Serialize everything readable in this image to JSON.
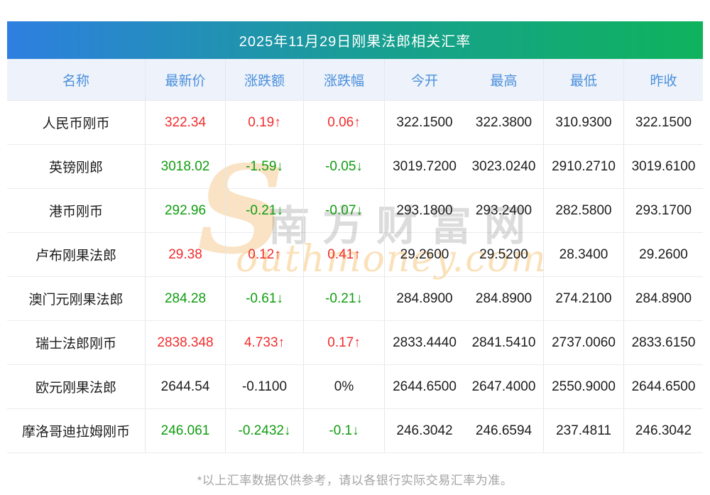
{
  "title": "2025年11月29日刚果法郎相关汇率",
  "table": {
    "columns": [
      "名称",
      "最新价",
      "涨跌额",
      "涨跌幅",
      "今开",
      "最高",
      "最低",
      "昨收"
    ],
    "column_keys": [
      "name",
      "last",
      "change",
      "pct",
      "open",
      "high",
      "low",
      "prev"
    ],
    "rows": [
      {
        "name": "人民币刚币",
        "last": "322.34",
        "change": "0.19↑",
        "pct": "0.06↑",
        "trend": "up",
        "open": "322.1500",
        "high": "322.3800",
        "low": "310.9300",
        "prev": "322.1500"
      },
      {
        "name": "英镑刚郎",
        "last": "3018.02",
        "change": "-1.59↓",
        "pct": "-0.05↓",
        "trend": "down",
        "open": "3019.7200",
        "high": "3023.0240",
        "low": "2910.2710",
        "prev": "3019.6100"
      },
      {
        "name": "港币刚币",
        "last": "292.96",
        "change": "-0.21↓",
        "pct": "-0.07↓",
        "trend": "down",
        "open": "293.1800",
        "high": "293.2400",
        "low": "282.5800",
        "prev": "293.1700"
      },
      {
        "name": "卢布刚果法郎",
        "last": "29.38",
        "change": "0.12↑",
        "pct": "0.41↑",
        "trend": "up",
        "open": "29.2600",
        "high": "29.5200",
        "low": "28.3400",
        "prev": "29.2600"
      },
      {
        "name": "澳门元刚果法郎",
        "last": "284.28",
        "change": "-0.61↓",
        "pct": "-0.21↓",
        "trend": "down",
        "open": "284.8900",
        "high": "284.8900",
        "low": "274.2100",
        "prev": "284.8900"
      },
      {
        "name": "瑞士法郎刚币",
        "last": "2838.348",
        "change": "4.733↑",
        "pct": "0.17↑",
        "trend": "up",
        "open": "2833.4440",
        "high": "2841.5410",
        "low": "2737.0060",
        "prev": "2833.6150"
      },
      {
        "name": "欧元刚果法郎",
        "last": "2644.54",
        "change": "-0.1100",
        "pct": "0%",
        "trend": "flat",
        "open": "2644.6500",
        "high": "2647.4000",
        "low": "2550.9000",
        "prev": "2644.6500"
      },
      {
        "name": "摩洛哥迪拉姆刚币",
        "last": "246.061",
        "change": "-0.2432↓",
        "pct": "-0.1↓",
        "trend": "down",
        "open": "246.3042",
        "high": "246.6594",
        "low": "237.4811",
        "prev": "246.3042"
      }
    ]
  },
  "watermark": {
    "initial": "S",
    "cn": "南方财富网",
    "en": "outhmoney.com"
  },
  "footer": "*以上汇率数据仅供参考，请以各银行实际交易汇率为准。",
  "colors": {
    "up": "#f22c2c",
    "down": "#0f9d0f",
    "title_gradient_start": "#2e7fe0",
    "title_gradient_mid": "#17a08f",
    "title_gradient_end": "#0fb35c",
    "header_bg": "#eef2fa",
    "header_text": "#4a90dd"
  }
}
